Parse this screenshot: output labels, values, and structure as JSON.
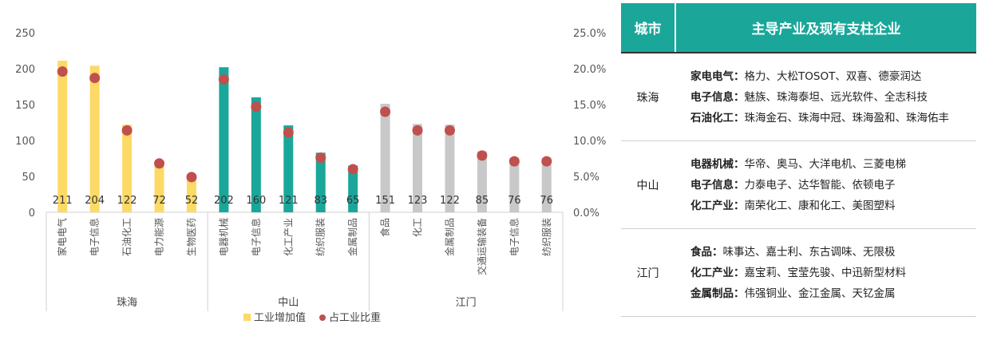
{
  "chart_data": {
    "type": "bar",
    "groups": [
      {
        "name": "珠海",
        "categories": [
          "家电电气",
          "电子信息",
          "石油化工",
          "电力能源",
          "生物医药"
        ],
        "values": [
          211,
          204,
          122,
          72,
          52
        ],
        "ratios": [
          19.6,
          18.7,
          11.4,
          6.8,
          4.9
        ],
        "color": "#fdd966"
      },
      {
        "name": "中山",
        "categories": [
          "电器机械",
          "电子信息",
          "化工产业",
          "纺织服装",
          "金属制品"
        ],
        "values": [
          202,
          160,
          121,
          83,
          65
        ],
        "ratios": [
          18.5,
          14.7,
          11.1,
          7.6,
          6.0
        ],
        "color": "#1aa79a"
      },
      {
        "name": "江门",
        "categories": [
          "食品",
          "化工",
          "金属制品",
          "交通运输装备",
          "电子信息",
          "纺织服装"
        ],
        "values": [
          151,
          123,
          122,
          85,
          76,
          76
        ],
        "ratios": [
          14.0,
          11.4,
          11.4,
          7.9,
          7.1,
          7.1
        ],
        "color": "#c8c8c8"
      }
    ],
    "series": [
      {
        "name": "工业增加值",
        "kind": "bar"
      },
      {
        "name": "占工业比重",
        "kind": "scatter",
        "color": "#c0504d"
      }
    ],
    "y_left": {
      "range": [
        0,
        250
      ],
      "ticks": [
        "0",
        "50",
        "100",
        "150",
        "200",
        "250"
      ]
    },
    "y_right": {
      "range": [
        0,
        25
      ],
      "ticks": [
        "0.0%",
        "5.0%",
        "10.0%",
        "15.0%",
        "20.0%",
        "25.0%"
      ]
    },
    "grid": false,
    "legend_placement": "bottom"
  },
  "table": {
    "headers": {
      "city": "城市",
      "industries": "主导产业及现有支柱企业"
    },
    "rows": [
      {
        "city": "珠海",
        "lines": [
          {
            "category": "家电电气：",
            "companies": "格力、大松TOSOT、双喜、德豪润达"
          },
          {
            "category": "电子信息：",
            "companies": "魅族、珠海泰坦、远光软件、全志科技"
          },
          {
            "category": "石油化工：",
            "companies": "珠海金石、珠海中冠、珠海盈和、珠海佑丰"
          }
        ]
      },
      {
        "city": "中山",
        "lines": [
          {
            "category": "电器机械：",
            "companies": "华帝、奥马、大洋电机、三菱电梯"
          },
          {
            "category": "电子信息：",
            "companies": "力泰电子、达华智能、依顿电子"
          },
          {
            "category": "化工产业：",
            "companies": "南荣化工、康和化工、美图塑料"
          }
        ]
      },
      {
        "city": "江门",
        "lines": [
          {
            "category": "食品：",
            "companies": "味事达、嘉士利、东古调味、无限极"
          },
          {
            "category": "化工产业：",
            "companies": "嘉宝莉、宝莹先骏、中迅新型材料"
          },
          {
            "category": "金属制品：",
            "companies": "伟强铜业、金江金属、天钇金属"
          }
        ]
      }
    ]
  }
}
